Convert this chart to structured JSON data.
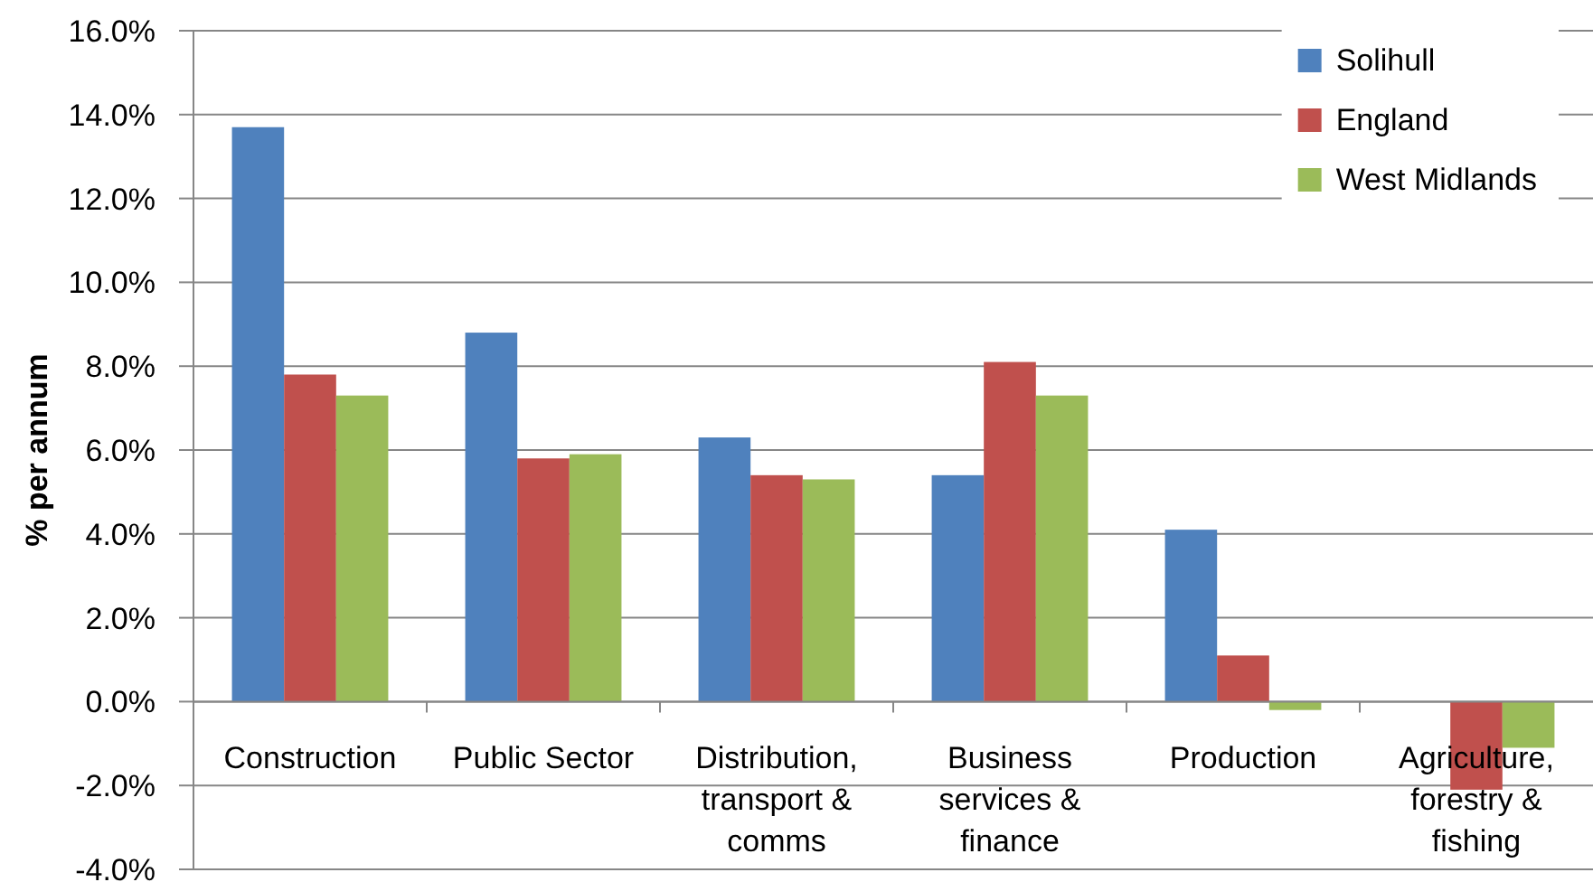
{
  "chart_data": {
    "type": "bar",
    "ylabel": "% per annum",
    "categories": [
      "Construction",
      "Public Sector",
      "Distribution, transport & comms",
      "Business services & finance",
      "Production",
      "Agriculture, forestry & fishing"
    ],
    "series": [
      {
        "name": "Solihull",
        "color": "#4f81bd",
        "values": [
          13.7,
          8.8,
          6.3,
          5.4,
          4.1,
          null
        ]
      },
      {
        "name": "England",
        "color": "#c0504d",
        "values": [
          7.8,
          5.8,
          5.4,
          8.1,
          1.1,
          -2.1
        ]
      },
      {
        "name": "West Midlands",
        "color": "#9bbb59",
        "values": [
          7.3,
          5.9,
          5.3,
          7.3,
          -0.2,
          -1.1
        ]
      }
    ],
    "ylim": [
      -4,
      16
    ],
    "yticks": [
      {
        "value": -4,
        "label": "-4.0%"
      },
      {
        "value": -2,
        "label": "-2.0%"
      },
      {
        "value": 0,
        "label": "0.0%"
      },
      {
        "value": 2,
        "label": "2.0%"
      },
      {
        "value": 4,
        "label": "4.0%"
      },
      {
        "value": 6,
        "label": "6.0%"
      },
      {
        "value": 8,
        "label": "8.0%"
      },
      {
        "value": 10,
        "label": "10.0%"
      },
      {
        "value": 12,
        "label": "12.0%"
      },
      {
        "value": 14,
        "label": "14.0%"
      },
      {
        "value": 16,
        "label": "16.0%"
      }
    ],
    "grid": "y",
    "legend": "top right"
  }
}
